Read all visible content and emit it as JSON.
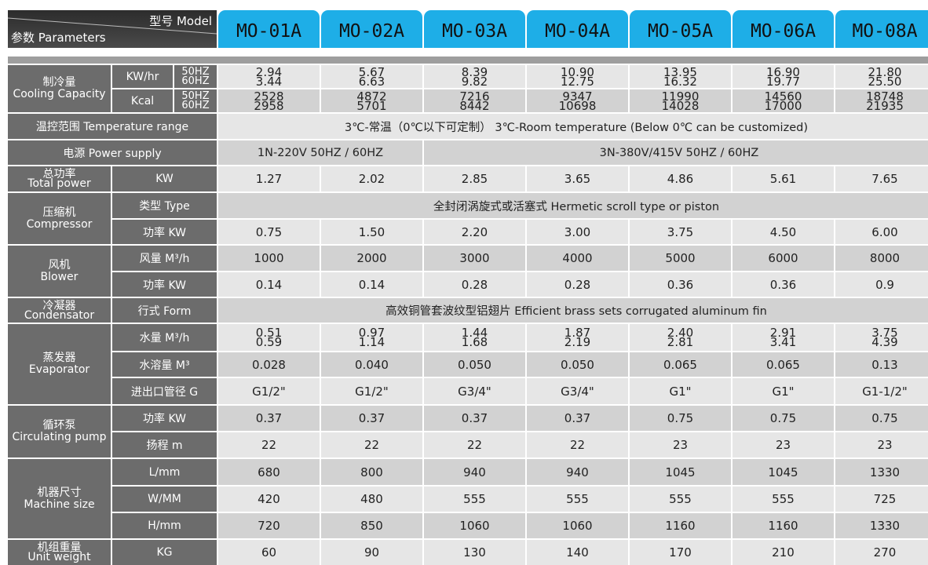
{
  "header": {
    "model_label": "型号 Model",
    "params_label": "参数 Parameters",
    "models": [
      "MO-01A",
      "MO-02A",
      "MO-03A",
      "MO-04A",
      "MO-05A",
      "MO-06A",
      "MO-08A"
    ]
  },
  "cooling": {
    "label_cn": "制冷量",
    "label_en": "Cooling Capacity",
    "kw_unit": "KW/hr",
    "kcal_unit": "Kcal",
    "hz50": "50HZ",
    "hz60": "60HZ",
    "kw50": [
      "2.94",
      "5.67",
      "8.39",
      "10.90",
      "13.95",
      "16.90",
      "21.80"
    ],
    "kw60": [
      "3.44",
      "6.63",
      "9.82",
      "12.75",
      "16.32",
      "19.77",
      "25.50"
    ],
    "kcal50": [
      "2528",
      "4872",
      "7216",
      "9347",
      "11990",
      "14560",
      "18748"
    ],
    "kcal60": [
      "2958",
      "5701",
      "8442",
      "10698",
      "14028",
      "17000",
      "21935"
    ]
  },
  "temp_range": {
    "label": "温控范围 Temperature range",
    "value": "3℃-常温（0℃以下可定制） 3℃-Room temperature (Below 0℃ can be customized)"
  },
  "power_supply": {
    "label": "电源 Power supply",
    "single": "1N-220V 50HZ / 60HZ",
    "three": "3N-380V/415V 50HZ / 60HZ"
  },
  "total_power": {
    "label_cn": "总功率",
    "label_en": "Total power",
    "unit": "KW",
    "values": [
      "1.27",
      "2.02",
      "2.85",
      "3.65",
      "4.86",
      "5.61",
      "7.65"
    ]
  },
  "compressor": {
    "label_cn": "压缩机",
    "label_en": "Compressor",
    "type_label": "类型 Type",
    "type_value": "全封闭涡旋式或活塞式 Hermetic scroll type or piston",
    "power_label": "功率 KW",
    "power": [
      "0.75",
      "1.50",
      "2.20",
      "3.00",
      "3.75",
      "4.50",
      "6.00"
    ]
  },
  "blower": {
    "label_cn": "风机",
    "label_en": "Blower",
    "air_label": "风量 M³/h",
    "air": [
      "1000",
      "2000",
      "3000",
      "4000",
      "5000",
      "6000",
      "8000"
    ],
    "power_label": "功率 KW",
    "power": [
      "0.14",
      "0.14",
      "0.28",
      "0.28",
      "0.36",
      "0.36",
      "0.9"
    ]
  },
  "condensator": {
    "label_cn": "冷凝器",
    "label_en": "Condensator",
    "form_label": "行式 Form",
    "form_value": "高效铜管套波纹型铝翅片 Efficient brass sets corrugated aluminum fin"
  },
  "evaporator": {
    "label_cn": "蒸发器",
    "label_en": "Evaporator",
    "water_label": "水量 M³/h",
    "water_a": [
      "0.51",
      "0.97",
      "1.44",
      "1.87",
      "2.40",
      "2.91",
      "3.75"
    ],
    "water_b": [
      "0.59",
      "1.14",
      "1.68",
      "2.19",
      "2.81",
      "3.41",
      "4.39"
    ],
    "volume_label": "水溶量 M³",
    "volume": [
      "0.028",
      "0.040",
      "0.050",
      "0.050",
      "0.065",
      "0.065",
      "0.13"
    ],
    "pipe_label": "进出口管径 G",
    "pipe": [
      "G1/2\"",
      "G1/2\"",
      "G3/4\"",
      "G3/4\"",
      "G1\"",
      "G1\"",
      "G1-1/2\""
    ]
  },
  "pump": {
    "label_cn": "循环泵",
    "label_en": "Circulating pump",
    "power_label": "功率 KW",
    "power": [
      "0.37",
      "0.37",
      "0.37",
      "0.37",
      "0.75",
      "0.75",
      "0.75"
    ],
    "head_label": "扬程 m",
    "head": [
      "22",
      "22",
      "22",
      "22",
      "23",
      "23",
      "23"
    ]
  },
  "size": {
    "label_cn": "机器尺寸",
    "label_en": "Machine size",
    "l_label": "L/mm",
    "l": [
      "680",
      "800",
      "940",
      "940",
      "1045",
      "1045",
      "1330"
    ],
    "w_label": "W/MM",
    "w": [
      "420",
      "480",
      "555",
      "555",
      "555",
      "555",
      "725"
    ],
    "h_label": "H/mm",
    "h": [
      "720",
      "850",
      "1060",
      "1060",
      "1160",
      "1160",
      "1330"
    ]
  },
  "weight": {
    "label_cn": "机组重量",
    "label_en": "Unit weight",
    "unit": "KG",
    "values": [
      "60",
      "90",
      "130",
      "140",
      "170",
      "210",
      "270"
    ]
  }
}
